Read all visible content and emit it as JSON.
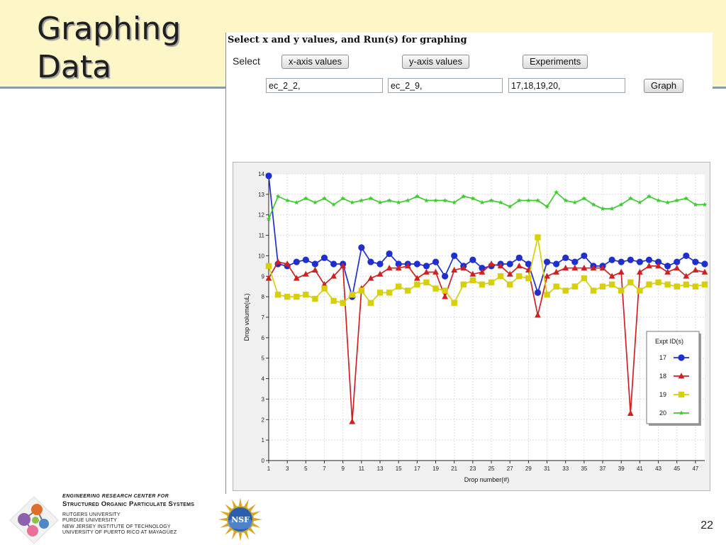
{
  "slide": {
    "title_lines": [
      "Graphing",
      "Data"
    ],
    "page_number": "22"
  },
  "form": {
    "heading": "Select x and y values, and Run(s) for graphing",
    "select_label": "Select",
    "x_button": "x-axis values",
    "y_button": "y-axis values",
    "experiments_button": "Experiments",
    "x_value": "ec_2_2,",
    "y_value": "ec_2_9,",
    "experiments_value": "17,18,19,20,",
    "graph_button": "Graph"
  },
  "footer": {
    "erc_line": "ENGINEERING RESEARCH CENTER FOR",
    "center_name": "Structured Organic Particulate Systems",
    "universities": [
      "RUTGERS UNIVERSITY",
      "PURDUE UNIVERSITY",
      "NEW JERSEY INSTITUTE OF TECHNOLOGY",
      "UNIVERSITY OF PUERTO RICO AT MAYAGÜEZ"
    ],
    "nsf_text": "NSF"
  },
  "chart_data": {
    "type": "line",
    "xlabel": "Drop number(#)",
    "ylabel": "Drop volume(uL)",
    "xlim": [
      1,
      48
    ],
    "ylim": [
      0,
      14
    ],
    "x_ticks": [
      1,
      3,
      5,
      7,
      9,
      11,
      13,
      15,
      17,
      19,
      21,
      23,
      25,
      27,
      29,
      31,
      33,
      35,
      37,
      39,
      41,
      43,
      45,
      47
    ],
    "y_ticks": [
      0,
      1,
      2,
      3,
      4,
      5,
      6,
      7,
      8,
      9,
      10,
      11,
      12,
      13,
      14
    ],
    "grid": true,
    "legend": {
      "title": "Expt ID(s)",
      "position": "right"
    },
    "x": [
      1,
      2,
      3,
      4,
      5,
      6,
      7,
      8,
      9,
      10,
      11,
      12,
      13,
      14,
      15,
      16,
      17,
      18,
      19,
      20,
      21,
      22,
      23,
      24,
      25,
      26,
      27,
      28,
      29,
      30,
      31,
      32,
      33,
      34,
      35,
      36,
      37,
      38,
      39,
      40,
      41,
      42,
      43,
      44,
      45,
      46,
      47,
      48
    ],
    "series": [
      {
        "name": "17",
        "color": "#1f2fcf",
        "marker": "circle",
        "values": [
          13.9,
          9.6,
          9.5,
          9.7,
          9.8,
          9.6,
          9.9,
          9.6,
          9.6,
          8.0,
          10.4,
          9.7,
          9.6,
          10.1,
          9.6,
          9.6,
          9.6,
          9.5,
          9.7,
          9.0,
          10.0,
          9.5,
          9.8,
          9.4,
          9.5,
          9.6,
          9.6,
          9.9,
          9.6,
          8.2,
          9.7,
          9.6,
          9.9,
          9.7,
          10.0,
          9.5,
          9.5,
          9.8,
          9.7,
          9.8,
          9.7,
          9.8,
          9.7,
          9.5,
          9.7,
          10.0,
          9.7,
          9.6
        ]
      },
      {
        "name": "18",
        "color": "#d12020",
        "marker": "triangle",
        "values": [
          8.9,
          9.7,
          9.6,
          8.9,
          9.1,
          9.3,
          8.6,
          9.0,
          9.5,
          1.9,
          8.4,
          8.9,
          9.1,
          9.4,
          9.4,
          9.5,
          8.9,
          9.2,
          9.2,
          8.0,
          9.3,
          9.4,
          9.1,
          9.2,
          9.6,
          9.5,
          9.1,
          9.5,
          9.3,
          7.1,
          9.0,
          9.2,
          9.4,
          9.4,
          9.4,
          9.4,
          9.4,
          9.0,
          9.2,
          2.3,
          9.2,
          9.5,
          9.5,
          9.2,
          9.4,
          9.0,
          9.3,
          9.2
        ]
      },
      {
        "name": "19",
        "color": "#d6cf0a",
        "marker": "square",
        "values": [
          9.5,
          8.1,
          8.0,
          8.0,
          8.1,
          7.9,
          8.4,
          7.8,
          7.7,
          8.1,
          8.3,
          7.7,
          8.2,
          8.2,
          8.5,
          8.3,
          8.6,
          8.7,
          8.4,
          8.3,
          7.7,
          8.6,
          8.8,
          8.6,
          8.7,
          9.0,
          8.6,
          9.0,
          8.9,
          10.9,
          8.1,
          8.5,
          8.3,
          8.5,
          8.9,
          8.3,
          8.5,
          8.6,
          8.3,
          8.7,
          8.3,
          8.6,
          8.7,
          8.6,
          8.5,
          8.6,
          8.5,
          8.6
        ]
      },
      {
        "name": "20",
        "color": "#3ccc2c",
        "marker": "star",
        "values": [
          11.8,
          12.9,
          12.7,
          12.6,
          12.8,
          12.6,
          12.8,
          12.5,
          12.8,
          12.6,
          12.7,
          12.8,
          12.6,
          12.7,
          12.6,
          12.7,
          12.9,
          12.7,
          12.7,
          12.7,
          12.6,
          12.9,
          12.8,
          12.6,
          12.7,
          12.6,
          12.4,
          12.7,
          12.7,
          12.7,
          12.4,
          13.1,
          12.7,
          12.6,
          12.8,
          12.5,
          12.3,
          12.3,
          12.5,
          12.8,
          12.6,
          12.9,
          12.7,
          12.6,
          12.7,
          12.8,
          12.5,
          12.5
        ]
      }
    ]
  }
}
